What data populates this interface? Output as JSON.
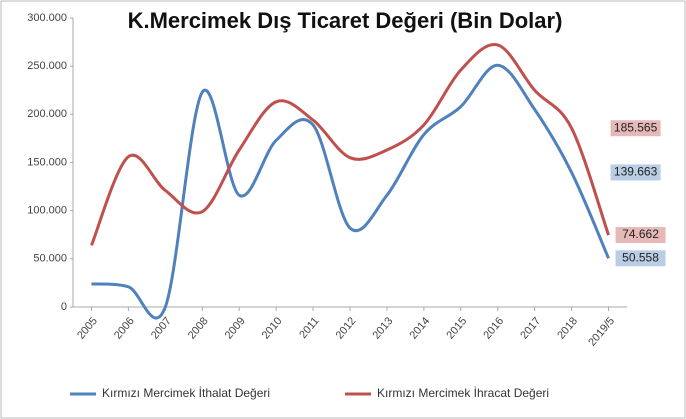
{
  "chart_data": {
    "type": "line",
    "title": "K.Mercimek Dış Ticaret Değeri (Bin Dolar)",
    "categories": [
      "2005",
      "2006",
      "2007",
      "2008",
      "2009",
      "2010",
      "2011",
      "2012",
      "2013",
      "2014",
      "2015",
      "2016",
      "2017",
      "2018",
      "2019/5"
    ],
    "series": [
      {
        "name": "Kırmızı Mercimek İthalat Değeri",
        "color": "#4f81bd",
        "label_color": "#b9cde5",
        "values": [
          24000,
          21000,
          0,
          223000,
          116000,
          173000,
          189000,
          82000,
          116000,
          179000,
          208000,
          251000,
          205000,
          139663,
          50558
        ],
        "value_labels": [
          null,
          null,
          null,
          null,
          null,
          null,
          null,
          null,
          null,
          null,
          null,
          null,
          null,
          "139.663",
          "50.558"
        ]
      },
      {
        "name": "Kırmızı Mercimek İhracat Değeri",
        "color": "#c0504d",
        "label_color": "#e6b9b8",
        "values": [
          64000,
          156000,
          121000,
          99000,
          163000,
          213000,
          194000,
          155000,
          163000,
          189000,
          246000,
          272000,
          225000,
          185565,
          74662
        ],
        "value_labels": [
          null,
          null,
          null,
          null,
          null,
          null,
          null,
          null,
          null,
          null,
          null,
          null,
          null,
          "185.565",
          "74.662"
        ]
      }
    ],
    "ylim": [
      0,
      300000
    ],
    "yticks": [
      0,
      {
        "value": 50000,
        "label": "50.000"
      },
      {
        "value": 100000,
        "label": "100.000"
      },
      {
        "value": 150000,
        "label": "150.000"
      },
      {
        "value": 200000,
        "label": "200.000"
      },
      {
        "value": 250000,
        "label": "250.000"
      },
      {
        "value": 300000,
        "label": "300.000"
      }
    ],
    "legend": "bottom"
  }
}
